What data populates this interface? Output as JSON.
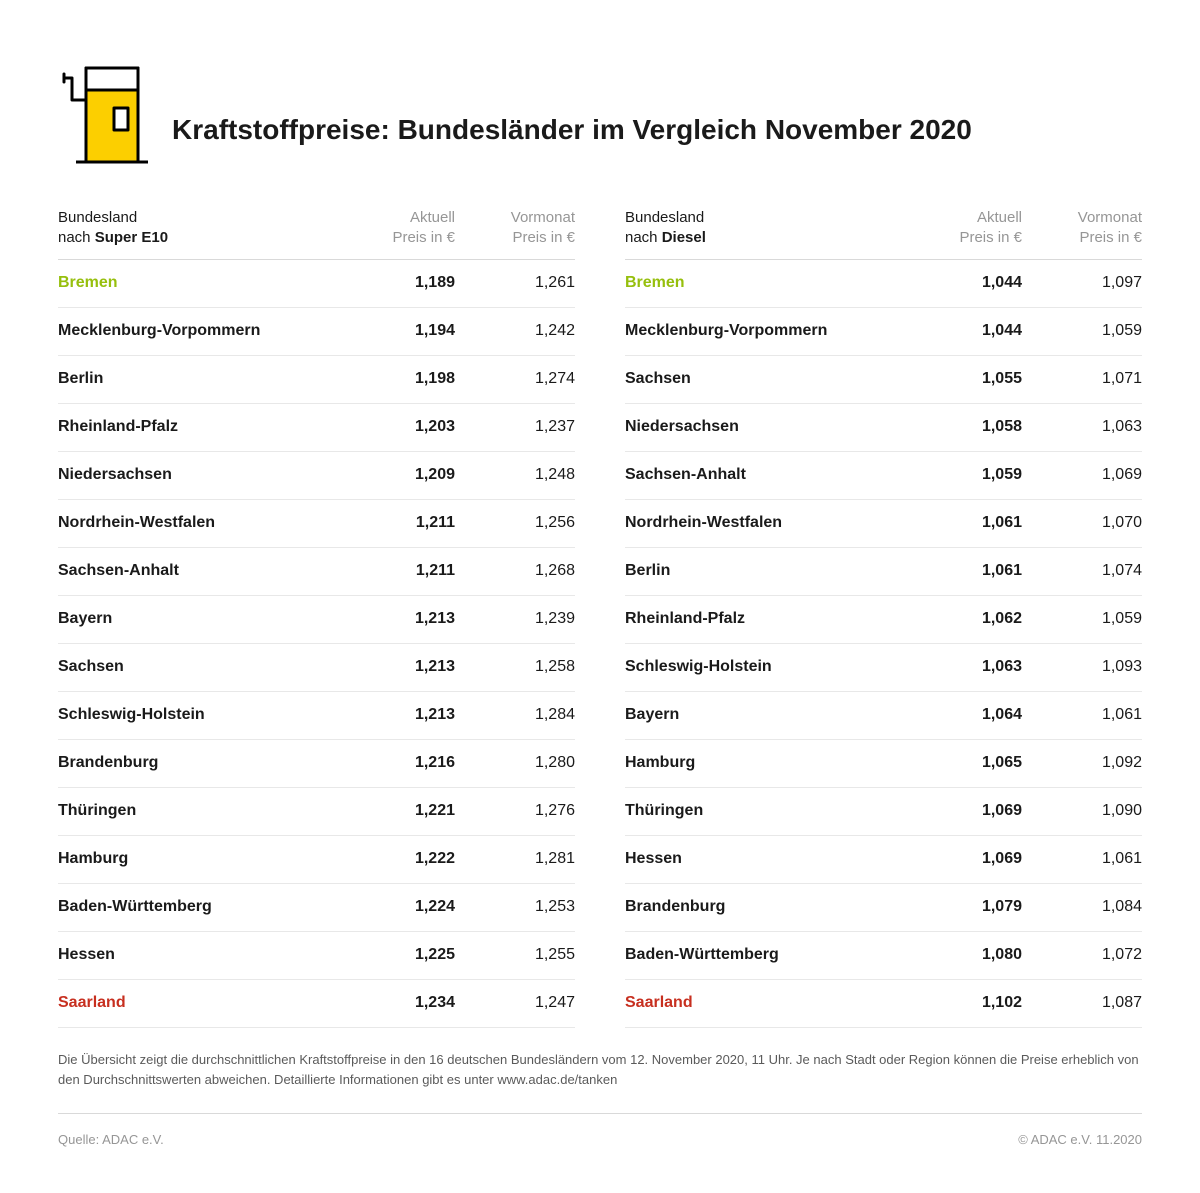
{
  "colors": {
    "background": "#ffffff",
    "text_primary": "#1a1a1a",
    "text_muted": "#969696",
    "text_footnote": "#5a5a5a",
    "divider": "#d9d9d9",
    "row_divider": "#e8e8e8",
    "best": "#96bf0d",
    "worst": "#c72f1f",
    "icon_fill": "#fccf00",
    "icon_stroke": "#000000"
  },
  "title": "Kraftstoffpreise: Bundesländer im Vergleich November 2020",
  "col_headers": {
    "region_line1": "Bundesland",
    "region_line2_prefix": "nach ",
    "current_line1": "Aktuell",
    "current_line2": "Preis in €",
    "prev_line1": "Vormonat",
    "prev_line2": "Preis in €"
  },
  "tables": [
    {
      "fuel": "Super E10",
      "rows": [
        {
          "name": "Bremen",
          "current": "1,189",
          "prev": "1,261",
          "tag": "best"
        },
        {
          "name": "Mecklenburg-Vorpommern",
          "current": "1,194",
          "prev": "1,242"
        },
        {
          "name": "Berlin",
          "current": "1,198",
          "prev": "1,274"
        },
        {
          "name": "Rheinland-Pfalz",
          "current": "1,203",
          "prev": "1,237"
        },
        {
          "name": "Niedersachsen",
          "current": "1,209",
          "prev": "1,248"
        },
        {
          "name": "Nordrhein-Westfalen",
          "current": "1,211",
          "prev": "1,256"
        },
        {
          "name": "Sachsen-Anhalt",
          "current": "1,211",
          "prev": "1,268"
        },
        {
          "name": "Bayern",
          "current": "1,213",
          "prev": "1,239"
        },
        {
          "name": "Sachsen",
          "current": "1,213",
          "prev": "1,258"
        },
        {
          "name": "Schleswig-Holstein",
          "current": "1,213",
          "prev": "1,284"
        },
        {
          "name": "Brandenburg",
          "current": "1,216",
          "prev": "1,280"
        },
        {
          "name": "Thüringen",
          "current": "1,221",
          "prev": "1,276"
        },
        {
          "name": "Hamburg",
          "current": "1,222",
          "prev": "1,281"
        },
        {
          "name": "Baden-Württemberg",
          "current": "1,224",
          "prev": "1,253"
        },
        {
          "name": "Hessen",
          "current": "1,225",
          "prev": "1,255"
        },
        {
          "name": "Saarland",
          "current": "1,234",
          "prev": "1,247",
          "tag": "worst"
        }
      ]
    },
    {
      "fuel": "Diesel",
      "rows": [
        {
          "name": "Bremen",
          "current": "1,044",
          "prev": "1,097",
          "tag": "best"
        },
        {
          "name": "Mecklenburg-Vorpommern",
          "current": "1,044",
          "prev": "1,059"
        },
        {
          "name": "Sachsen",
          "current": "1,055",
          "prev": "1,071"
        },
        {
          "name": "Niedersachsen",
          "current": "1,058",
          "prev": "1,063"
        },
        {
          "name": "Sachsen-Anhalt",
          "current": "1,059",
          "prev": "1,069"
        },
        {
          "name": "Nordrhein-Westfalen",
          "current": "1,061",
          "prev": "1,070"
        },
        {
          "name": "Berlin",
          "current": "1,061",
          "prev": "1,074"
        },
        {
          "name": "Rheinland-Pfalz",
          "current": "1,062",
          "prev": "1,059"
        },
        {
          "name": "Schleswig-Holstein",
          "current": "1,063",
          "prev": "1,093"
        },
        {
          "name": "Bayern",
          "current": "1,064",
          "prev": "1,061"
        },
        {
          "name": "Hamburg",
          "current": "1,065",
          "prev": "1,092"
        },
        {
          "name": "Thüringen",
          "current": "1,069",
          "prev": "1,090"
        },
        {
          "name": "Hessen",
          "current": "1,069",
          "prev": "1,061"
        },
        {
          "name": "Brandenburg",
          "current": "1,079",
          "prev": "1,084"
        },
        {
          "name": "Baden-Württemberg",
          "current": "1,080",
          "prev": "1,072"
        },
        {
          "name": "Saarland",
          "current": "1,102",
          "prev": "1,087",
          "tag": "worst"
        }
      ]
    }
  ],
  "footnote": "Die Übersicht zeigt die durchschnittlichen Kraftstoffpreise in den 16 deutschen Bundesländern vom 12. November 2020, 11 Uhr. Je nach Stadt oder Region können die Preise erheblich von den Durchschnittswerten abweichen. Detaillierte Informationen gibt es unter www.adac.de/tanken",
  "source": "Quelle: ADAC e.V.",
  "copyright": "© ADAC e.V. 11.2020"
}
